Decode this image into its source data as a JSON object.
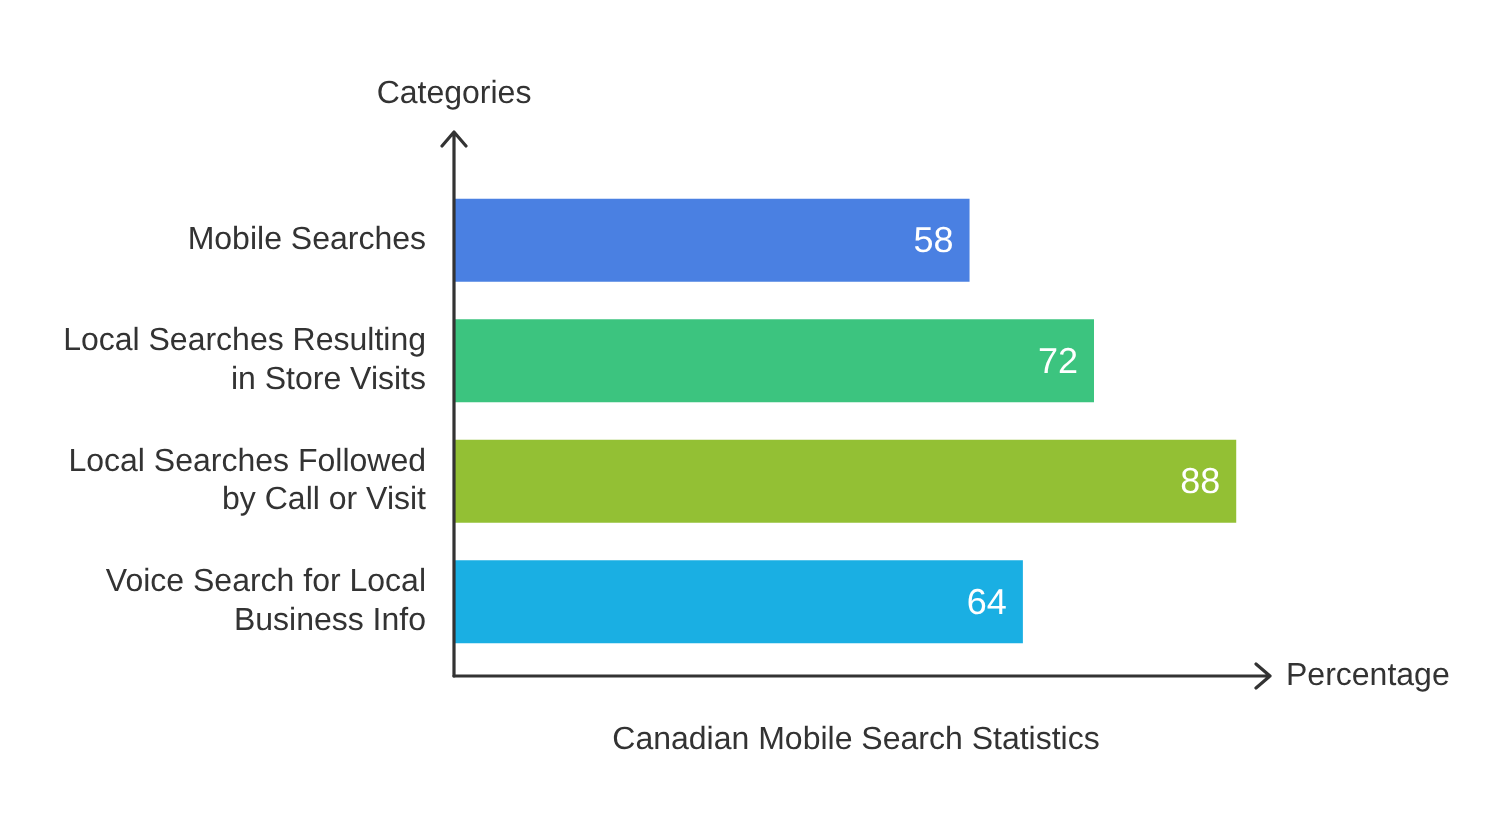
{
  "chart_data": {
    "type": "bar",
    "orientation": "horizontal",
    "title": "Canadian Mobile Search Statistics",
    "xlabel": "Percentage",
    "ylabel": "Categories",
    "categories": [
      "Mobile Searches",
      "Local Searches Resulting in Store Visits",
      "Local Searches Followed by Call or Visit",
      "Voice Search for Local Business Info"
    ],
    "values": [
      58,
      72,
      88,
      64
    ],
    "colors": [
      "#4a80e2",
      "#3cc47f",
      "#93c034",
      "#1aafe3"
    ],
    "data_labels": true,
    "legend": false
  }
}
